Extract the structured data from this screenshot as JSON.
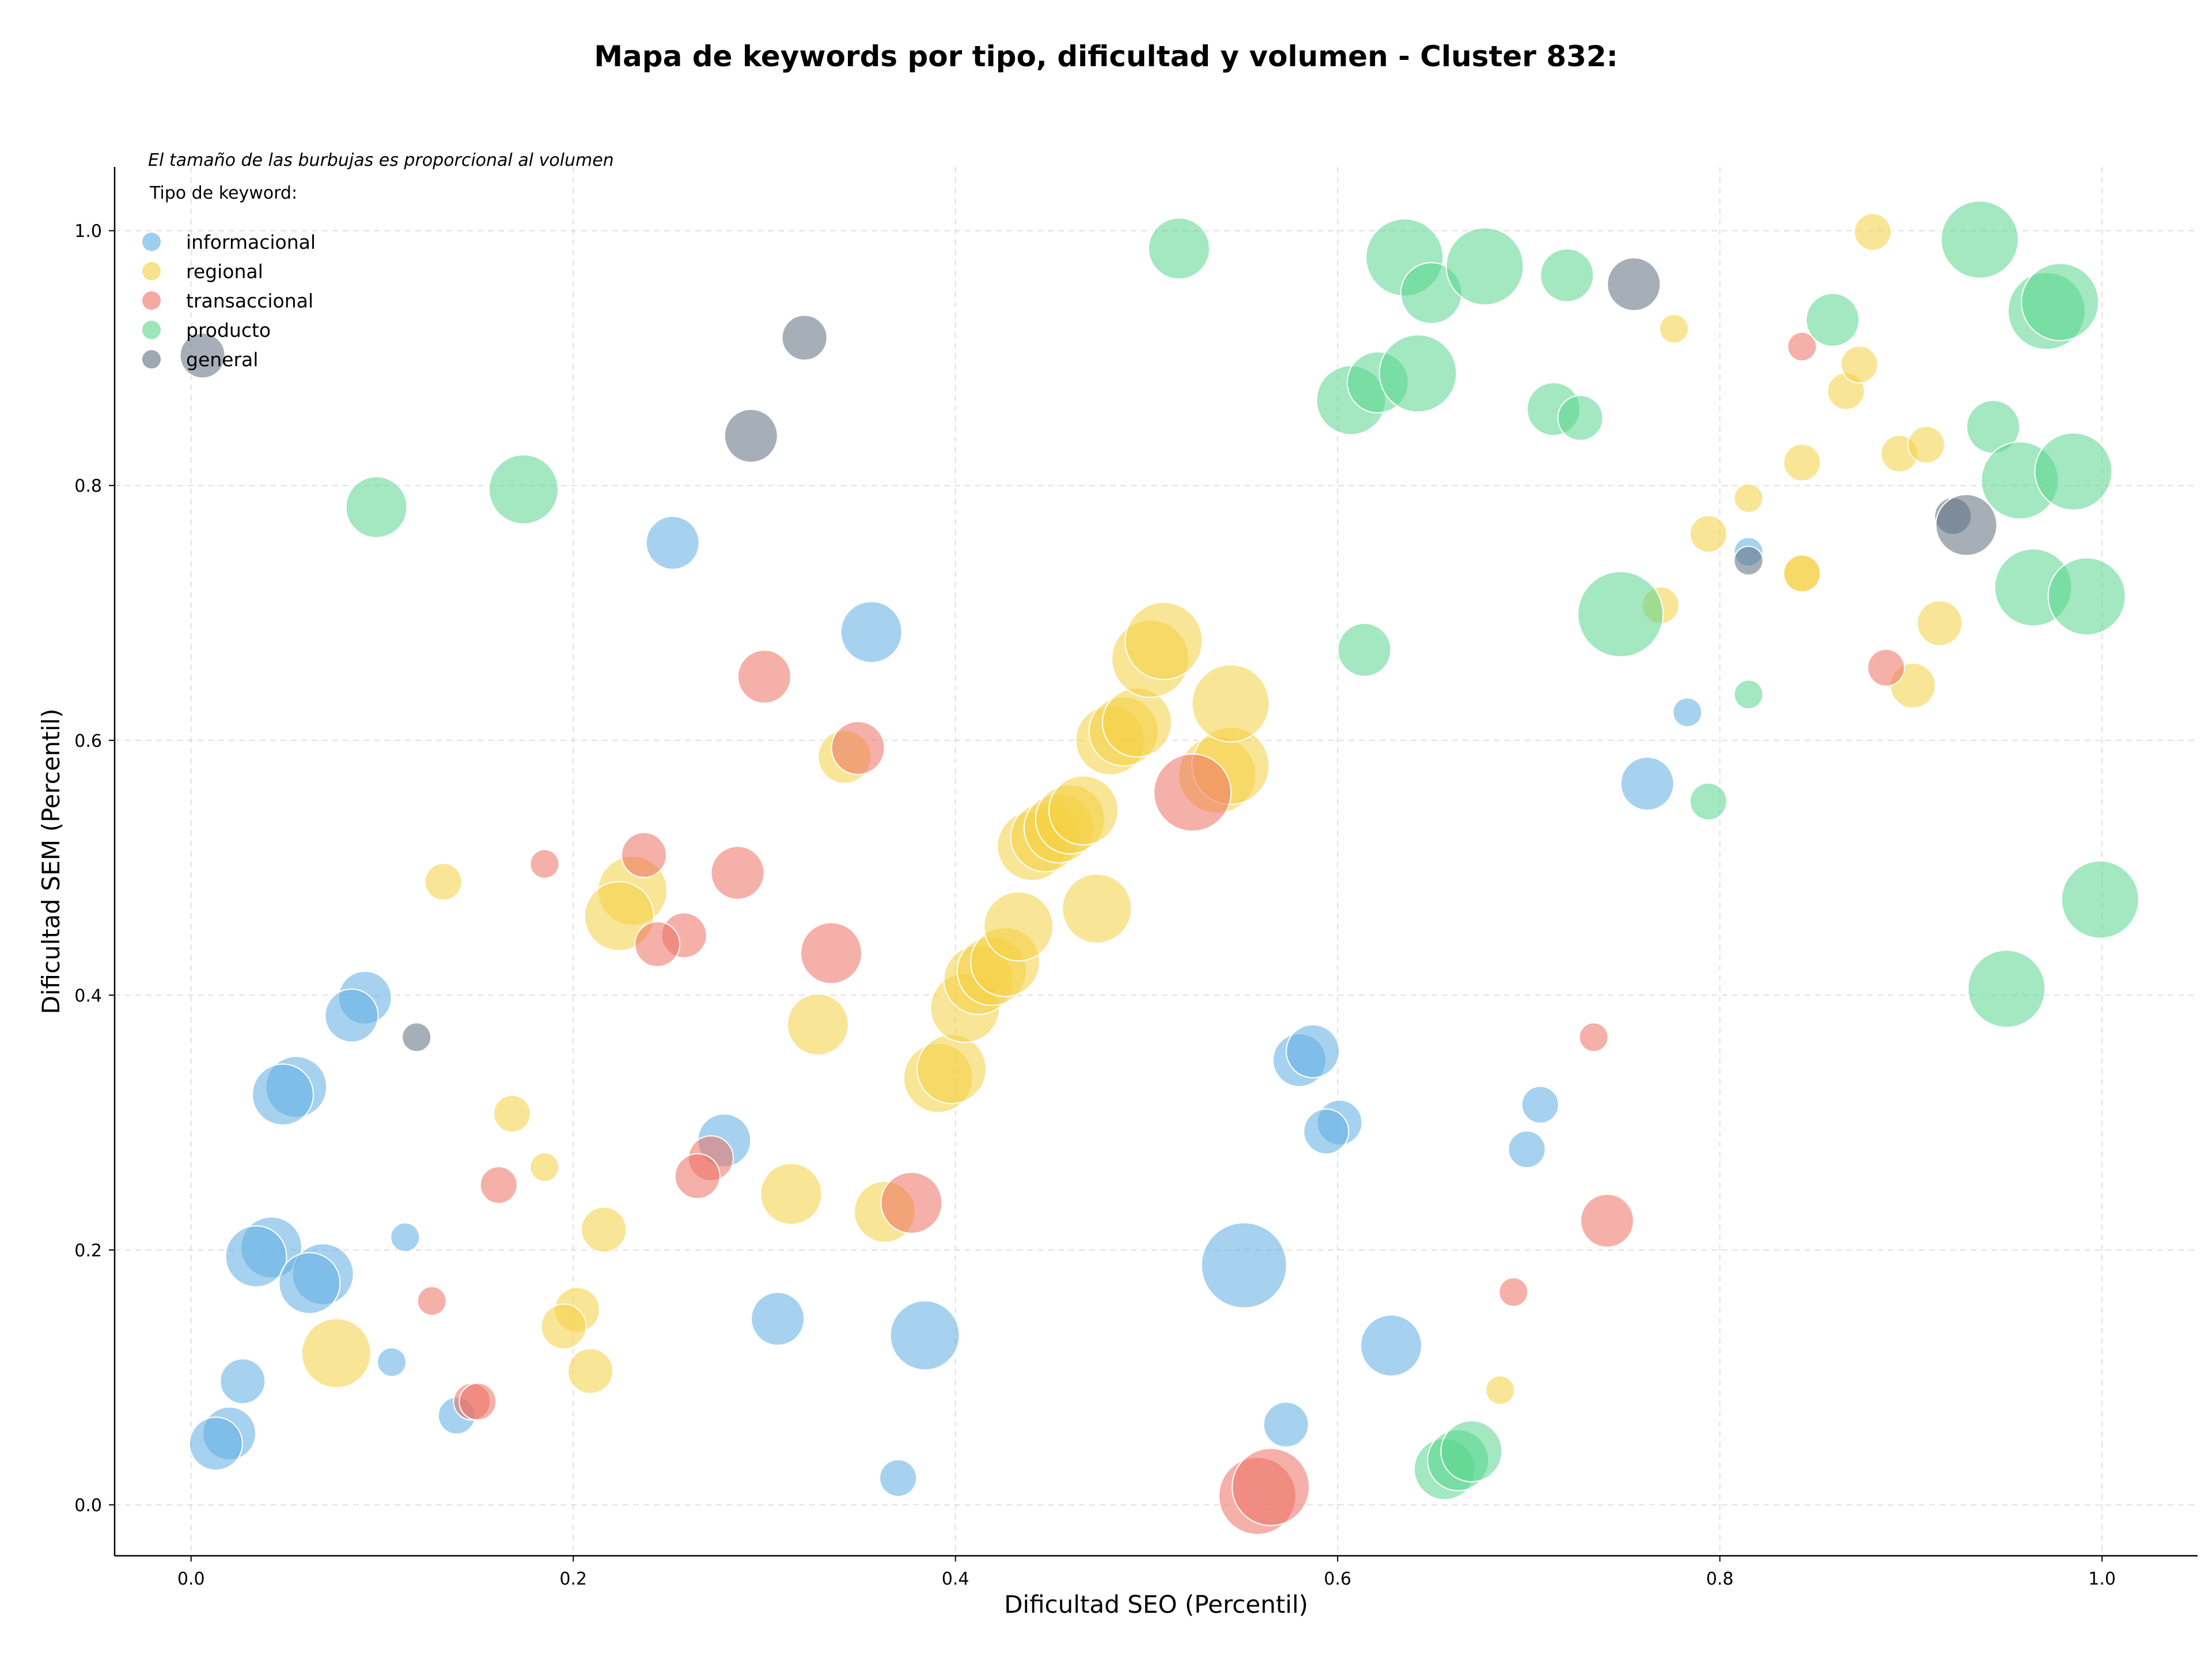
{
  "chart_data": {
    "type": "scatter",
    "title": "Mapa de keywords por tipo, dificultad y volumen - Cluster 832:",
    "subtitle": "El tamaño de las burbujas es proporcional al volumen",
    "xlabel": "Dificultad SEO (Percentil)",
    "ylabel": "Dificultad SEM (Percentil)",
    "xlim": [
      -0.04,
      1.05
    ],
    "ylim": [
      -0.04,
      1.05
    ],
    "x_ticks": [
      "0.0",
      "0.2",
      "0.4",
      "0.6",
      "0.8",
      "1.0"
    ],
    "y_ticks": [
      "0.0",
      "0.2",
      "0.4",
      "0.6",
      "0.8",
      "1.0"
    ],
    "grid": true,
    "legend_title": "Tipo de keyword:",
    "legend_placement": "top-left",
    "size_range": [
      1,
      10
    ],
    "series": [
      {
        "name": "informacional",
        "color": "#5DADE2",
        "points": [
          [
            0.252,
            0.755,
            5
          ],
          [
            0.356,
            0.685,
            6
          ],
          [
            0.091,
            0.398,
            5
          ],
          [
            0.084,
            0.384,
            5
          ],
          [
            0.055,
            0.328,
            6
          ],
          [
            0.048,
            0.322,
            6
          ],
          [
            0.112,
            0.21,
            2
          ],
          [
            0.042,
            0.202,
            6
          ],
          [
            0.034,
            0.195,
            6
          ],
          [
            0.069,
            0.181,
            6
          ],
          [
            0.062,
            0.174,
            6
          ],
          [
            0.027,
            0.097,
            4
          ],
          [
            0.105,
            0.112,
            2
          ],
          [
            0.139,
            0.07,
            3
          ],
          [
            0.02,
            0.056,
            5
          ],
          [
            0.013,
            0.048,
            5
          ],
          [
            0.279,
            0.286,
            5
          ],
          [
            0.307,
            0.146,
            5
          ],
          [
            0.384,
            0.133,
            7
          ],
          [
            0.37,
            0.021,
            3
          ],
          [
            0.551,
            0.188,
            9
          ],
          [
            0.58,
            0.349,
            5
          ],
          [
            0.587,
            0.356,
            5
          ],
          [
            0.601,
            0.3,
            4
          ],
          [
            0.594,
            0.293,
            4
          ],
          [
            0.628,
            0.125,
            6
          ],
          [
            0.573,
            0.063,
            4
          ],
          [
            0.706,
            0.314,
            3
          ],
          [
            0.699,
            0.279,
            3
          ],
          [
            0.762,
            0.566,
            5
          ],
          [
            0.783,
            0.622,
            2
          ],
          [
            0.815,
            0.748,
            2
          ]
        ]
      },
      {
        "name": "regional",
        "color": "#F4D03F",
        "points": [
          [
            0.132,
            0.489,
            3
          ],
          [
            0.231,
            0.482,
            7
          ],
          [
            0.224,
            0.462,
            7
          ],
          [
            0.168,
            0.307,
            3
          ],
          [
            0.185,
            0.265,
            2
          ],
          [
            0.216,
            0.216,
            4
          ],
          [
            0.202,
            0.153,
            4
          ],
          [
            0.195,
            0.14,
            4
          ],
          [
            0.076,
            0.119,
            7
          ],
          [
            0.209,
            0.105,
            4
          ],
          [
            0.342,
            0.587,
            5
          ],
          [
            0.328,
            0.377,
            6
          ],
          [
            0.314,
            0.244,
            6
          ],
          [
            0.363,
            0.23,
            6
          ],
          [
            0.391,
            0.335,
            7
          ],
          [
            0.398,
            0.342,
            7
          ],
          [
            0.405,
            0.39,
            7
          ],
          [
            0.412,
            0.412,
            7
          ],
          [
            0.419,
            0.419,
            7
          ],
          [
            0.426,
            0.426,
            7
          ],
          [
            0.433,
            0.454,
            7
          ],
          [
            0.474,
            0.468,
            7
          ],
          [
            0.44,
            0.517,
            7
          ],
          [
            0.447,
            0.524,
            7
          ],
          [
            0.454,
            0.531,
            7
          ],
          [
            0.46,
            0.538,
            7
          ],
          [
            0.467,
            0.545,
            7
          ],
          [
            0.481,
            0.6,
            7
          ],
          [
            0.488,
            0.607,
            7
          ],
          [
            0.495,
            0.614,
            7
          ],
          [
            0.502,
            0.664,
            8
          ],
          [
            0.509,
            0.678,
            8
          ],
          [
            0.537,
            0.573,
            8
          ],
          [
            0.544,
            0.58,
            8
          ],
          [
            0.544,
            0.629,
            8
          ],
          [
            0.685,
            0.09,
            2
          ],
          [
            0.769,
            0.706,
            3
          ],
          [
            0.776,
            0.923,
            2
          ],
          [
            0.794,
            0.762,
            3
          ],
          [
            0.815,
            0.79,
            2
          ],
          [
            0.843,
            0.818,
            3
          ],
          [
            0.843,
            0.731,
            3
          ],
          [
            0.843,
            0.731,
            3
          ],
          [
            0.866,
            0.874,
            3
          ],
          [
            0.873,
            0.895,
            3
          ],
          [
            0.88,
            0.999,
            3
          ],
          [
            0.894,
            0.825,
            3
          ],
          [
            0.908,
            0.832,
            3
          ],
          [
            0.901,
            0.643,
            4
          ],
          [
            0.915,
            0.692,
            4
          ]
        ]
      },
      {
        "name": "transaccional",
        "color": "#EC7063",
        "points": [
          [
            0.3,
            0.65,
            5
          ],
          [
            0.349,
            0.594,
            5
          ],
          [
            0.237,
            0.51,
            4
          ],
          [
            0.185,
            0.503,
            2
          ],
          [
            0.286,
            0.496,
            5
          ],
          [
            0.335,
            0.433,
            6
          ],
          [
            0.258,
            0.447,
            4
          ],
          [
            0.244,
            0.44,
            4
          ],
          [
            0.272,
            0.272,
            4
          ],
          [
            0.265,
            0.258,
            4
          ],
          [
            0.161,
            0.251,
            3
          ],
          [
            0.377,
            0.237,
            6
          ],
          [
            0.126,
            0.16,
            2
          ],
          [
            0.147,
            0.081,
            3
          ],
          [
            0.15,
            0.081,
            3
          ],
          [
            0.524,
            0.559,
            8
          ],
          [
            0.558,
            0.007,
            8
          ],
          [
            0.565,
            0.014,
            8
          ],
          [
            0.692,
            0.167,
            2
          ],
          [
            0.734,
            0.367,
            2
          ],
          [
            0.741,
            0.223,
            5
          ],
          [
            0.843,
            0.909,
            2
          ],
          [
            0.887,
            0.657,
            3
          ]
        ]
      },
      {
        "name": "producto",
        "color": "#58D68D",
        "points": [
          [
            0.097,
            0.783,
            6
          ],
          [
            0.174,
            0.797,
            7
          ],
          [
            0.517,
            0.986,
            6
          ],
          [
            0.635,
            0.979,
            8
          ],
          [
            0.649,
            0.951,
            6
          ],
          [
            0.677,
            0.972,
            8
          ],
          [
            0.72,
            0.965,
            5
          ],
          [
            0.607,
            0.867,
            7
          ],
          [
            0.621,
            0.881,
            6
          ],
          [
            0.642,
            0.888,
            8
          ],
          [
            0.713,
            0.86,
            5
          ],
          [
            0.727,
            0.853,
            4
          ],
          [
            0.614,
            0.671,
            5
          ],
          [
            0.748,
            0.699,
            9
          ],
          [
            0.794,
            0.552,
            3
          ],
          [
            0.815,
            0.636,
            2
          ],
          [
            0.859,
            0.93,
            5
          ],
          [
            0.936,
            0.993,
            8
          ],
          [
            0.971,
            0.937,
            8
          ],
          [
            0.978,
            0.944,
            8
          ],
          [
            0.943,
            0.846,
            5
          ],
          [
            0.957,
            0.804,
            8
          ],
          [
            0.985,
            0.811,
            8
          ],
          [
            0.964,
            0.72,
            8
          ],
          [
            0.992,
            0.713,
            8
          ],
          [
            0.999,
            0.475,
            8
          ],
          [
            0.95,
            0.405,
            8
          ],
          [
            0.656,
            0.028,
            6
          ],
          [
            0.663,
            0.035,
            6
          ],
          [
            0.67,
            0.042,
            6
          ]
        ]
      },
      {
        "name": "general",
        "color": "#5D6D7E",
        "points": [
          [
            0.006,
            0.902,
            4
          ],
          [
            0.321,
            0.916,
            4
          ],
          [
            0.293,
            0.839,
            5
          ],
          [
            0.118,
            0.367,
            2
          ],
          [
            0.755,
            0.958,
            5
          ],
          [
            0.815,
            0.741,
            2
          ],
          [
            0.922,
            0.776,
            3
          ],
          [
            0.929,
            0.769,
            6
          ]
        ]
      }
    ]
  }
}
